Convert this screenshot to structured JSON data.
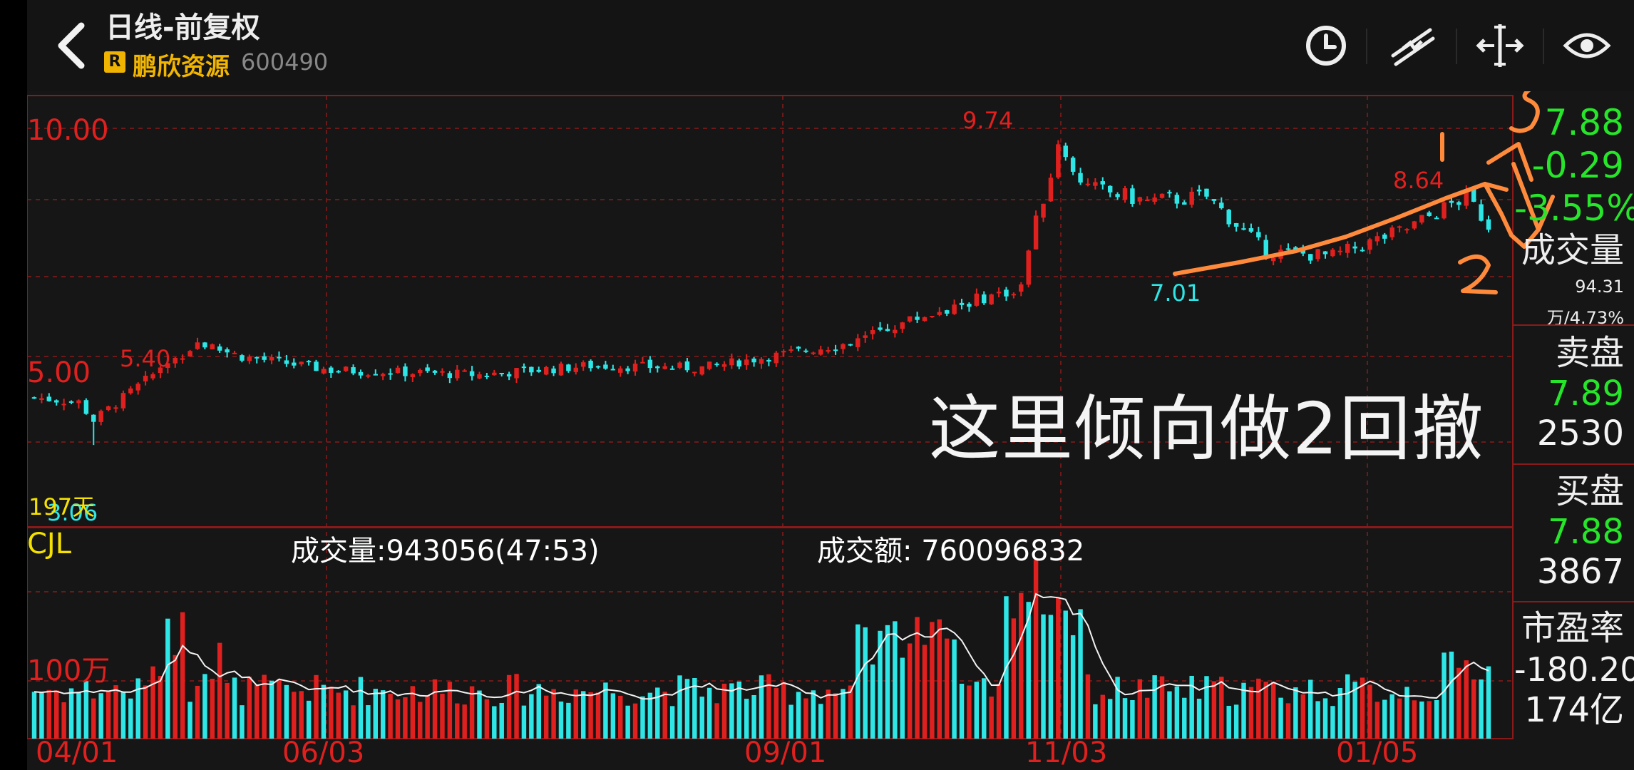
{
  "header": {
    "title": "日线-前复权",
    "badge": "R",
    "stock_name": "鹏欣资源",
    "stock_code": "600490",
    "toolbar_icons": [
      "clock-icon",
      "draw-line-icon",
      "range-icon",
      "eye-icon"
    ]
  },
  "quote": {
    "price": "7.88",
    "change": "-0.29",
    "change_pct": "-3.55%",
    "volume_label": "成交量",
    "volume_value": "94.31万/4.73%",
    "sell_label": "卖盘",
    "sell_price": "7.89",
    "sell_qty": "2530",
    "buy_label": "买盘",
    "buy_price": "7.88",
    "buy_qty": "3867",
    "pe_label": "市盈率",
    "pe_value": "-180.20",
    "market_cap": "174亿"
  },
  "annotations": {
    "overlay_text": "这里倾向做2回撤",
    "handwritten": [
      "1",
      "2",
      "3"
    ]
  },
  "price_panel": {
    "y_labels": [
      "10.00",
      "5.00"
    ],
    "high_label": "9.74",
    "recent_high_label": "8.64",
    "low_label": "7.01",
    "left_high_label": "5.40",
    "start_low_label": "3.06",
    "days_label": "197天"
  },
  "volume_panel": {
    "indicator": "CJL",
    "volume_text": "成交量:943056(47:53)",
    "amount_text": "成交额: 760096832",
    "y_label": "100万"
  },
  "x_labels": [
    "04/01",
    "06/03",
    "09/01",
    "11/03",
    "01/05"
  ],
  "colors": {
    "up": "#e0201e",
    "down": "#2ee6e6",
    "price_green": "#27e52a",
    "badge": "#f0b400",
    "annotation_orange": "#ff8a3c",
    "grid": "#8a1a1a"
  },
  "chart_data": {
    "type": "candlestick",
    "days": 197,
    "price_range": [
      3.06,
      9.74
    ],
    "labeled_points": [
      {
        "label": "start_low",
        "value": 3.06
      },
      {
        "label": "left_high",
        "value": 5.4
      },
      {
        "label": "peak",
        "value": 9.74
      },
      {
        "label": "trough",
        "value": 7.01
      },
      {
        "label": "recent_high",
        "value": 8.64
      },
      {
        "label": "last",
        "value": 7.88
      }
    ],
    "y_ticks": [
      10.0,
      5.0
    ],
    "x_ticks": [
      "04/01",
      "06/03",
      "09/01",
      "11/03",
      "01/05"
    ],
    "volume_tick": "100万"
  }
}
